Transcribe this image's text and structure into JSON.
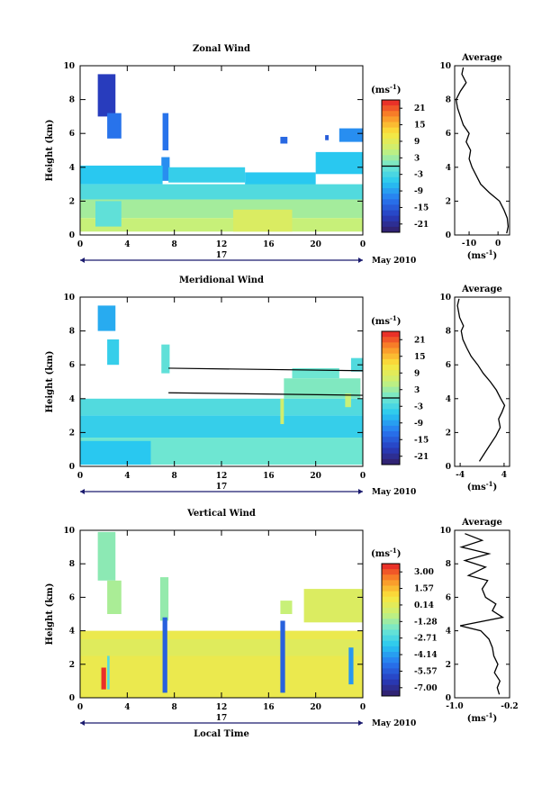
{
  "chart_data": [
    {
      "type": "heatmap",
      "title": "Zonal Wind",
      "ylabel": "Height (km)",
      "xlabel": "",
      "xlim": [
        0,
        24
      ],
      "ylim": [
        0,
        10
      ],
      "x_ticks": [
        "0",
        "4",
        "8",
        "12",
        "16",
        "20",
        "0"
      ],
      "y_ticks": [
        "0",
        "2",
        "4",
        "6",
        "8",
        "10"
      ],
      "date_day": "17",
      "date_label": "May 2010",
      "colorbar": {
        "unit_label": "(ms",
        "unit_exp": "-1",
        "ticks": [
          "21",
          "15",
          "9",
          "3",
          "-3",
          "-9",
          "-15",
          "-21"
        ],
        "zero_line": 0.5
      },
      "regions": [
        {
          "x0": 1.5,
          "x1": 3.0,
          "y0": 7.0,
          "y1": 9.5,
          "v": -16
        },
        {
          "x0": 2.3,
          "x1": 3.5,
          "y0": 5.7,
          "y1": 7.2,
          "v": -11
        },
        {
          "x0": 7.0,
          "x1": 7.5,
          "y0": 5.0,
          "y1": 7.2,
          "v": -11
        },
        {
          "x0": 6.9,
          "x1": 7.6,
          "y0": 3.2,
          "y1": 4.6,
          "v": -9
        },
        {
          "x0": 17.0,
          "x1": 17.6,
          "y0": 5.4,
          "y1": 5.8,
          "v": -12
        },
        {
          "x0": 20.8,
          "x1": 21.1,
          "y0": 5.6,
          "y1": 5.9,
          "v": -13
        },
        {
          "x0": 22.0,
          "x1": 24.0,
          "y0": 5.5,
          "y1": 6.3,
          "v": -9
        },
        {
          "x0": 20.0,
          "x1": 24.0,
          "y0": 3.6,
          "y1": 4.9,
          "v": -5
        },
        {
          "x0": 0.0,
          "x1": 7.0,
          "y0": 3.0,
          "y1": 4.1,
          "v": -5
        },
        {
          "x0": 7.5,
          "x1": 14.0,
          "y0": 3.1,
          "y1": 4.0,
          "v": -4
        },
        {
          "x0": 14.0,
          "x1": 20.0,
          "y0": 2.9,
          "y1": 3.7,
          "v": -5
        },
        {
          "x0": 0.0,
          "x1": 24.0,
          "y0": 2.1,
          "y1": 3.0,
          "v": -2
        },
        {
          "x0": 0.0,
          "x1": 24.0,
          "y0": 1.0,
          "y1": 2.1,
          "v": 3
        },
        {
          "x0": 0.0,
          "x1": 24.0,
          "y0": 0.2,
          "y1": 1.0,
          "v": 5
        },
        {
          "x0": 1.3,
          "x1": 3.5,
          "y0": 0.5,
          "y1": 2.0,
          "v": -1
        },
        {
          "x0": 13.0,
          "x1": 18.0,
          "y0": 0.2,
          "y1": 1.5,
          "v": 7
        }
      ],
      "profile": {
        "title": "Average",
        "xlabel_base": "(ms",
        "xlabel_exp": "-1",
        "xlim": [
          -15,
          4
        ],
        "ylim": [
          0,
          10
        ],
        "x_ticks": [
          {
            "v": -10,
            "t": "-10"
          },
          {
            "v": 0,
            "t": "0"
          }
        ],
        "y_ticks": [
          "0",
          "2",
          "4",
          "6",
          "8",
          "10"
        ],
        "points": [
          [
            3.0,
            0.1
          ],
          [
            3.5,
            0.5
          ],
          [
            3.2,
            1.0
          ],
          [
            2.0,
            1.5
          ],
          [
            0.5,
            2.0
          ],
          [
            -3.0,
            2.5
          ],
          [
            -6.0,
            3.0
          ],
          [
            -7.5,
            3.5
          ],
          [
            -9.0,
            4.0
          ],
          [
            -10.0,
            4.5
          ],
          [
            -9.5,
            5.0
          ],
          [
            -11.0,
            5.5
          ],
          [
            -10.0,
            6.0
          ],
          [
            -12.0,
            6.5
          ],
          [
            -13.0,
            7.0
          ],
          [
            -14.0,
            7.5
          ],
          [
            -14.5,
            8.0
          ],
          [
            -13.0,
            8.5
          ],
          [
            -11.0,
            9.0
          ],
          [
            -12.5,
            9.5
          ],
          [
            -12.0,
            9.9
          ]
        ]
      }
    },
    {
      "type": "heatmap",
      "title": "Meridional Wind",
      "ylabel": "Height (km)",
      "xlabel": "",
      "xlim": [
        0,
        24
      ],
      "ylim": [
        0,
        10
      ],
      "x_ticks": [
        "0",
        "4",
        "8",
        "12",
        "16",
        "20",
        "0"
      ],
      "y_ticks": [
        "0",
        "2",
        "4",
        "6",
        "8",
        "10"
      ],
      "date_day": "17",
      "date_label": "May 2010",
      "colorbar": {
        "unit_label": "(ms",
        "unit_exp": "-1",
        "ticks": [
          "21",
          "15",
          "9",
          "3",
          "-3",
          "-9",
          "-15",
          "-21"
        ],
        "zero_line": 0.5
      },
      "regions": [
        {
          "x0": 1.5,
          "x1": 3.0,
          "y0": 8.0,
          "y1": 9.5,
          "v": -7
        },
        {
          "x0": 2.3,
          "x1": 3.3,
          "y0": 6.0,
          "y1": 7.5,
          "v": -4
        },
        {
          "x0": 6.9,
          "x1": 7.6,
          "y0": 5.5,
          "y1": 7.2,
          "v": -1
        },
        {
          "x0": 23.0,
          "x1": 24.0,
          "y0": 5.6,
          "y1": 6.4,
          "v": -2
        },
        {
          "x0": 18.0,
          "x1": 22.0,
          "y0": 5.2,
          "y1": 5.8,
          "v": 0
        },
        {
          "x0": 17.3,
          "x1": 23.8,
          "y0": 4.0,
          "y1": 5.2,
          "v": 1
        },
        {
          "x0": 0.0,
          "x1": 24.0,
          "y0": 3.0,
          "y1": 4.0,
          "v": -2
        },
        {
          "x0": 0.0,
          "x1": 24.0,
          "y0": 1.7,
          "y1": 3.0,
          "v": -4
        },
        {
          "x0": 0.0,
          "x1": 24.0,
          "y0": 0.1,
          "y1": 1.7,
          "v": 0
        },
        {
          "x0": 0.0,
          "x1": 6.0,
          "y0": 0.1,
          "y1": 1.5,
          "v": -5
        },
        {
          "x0": 17.0,
          "x1": 17.3,
          "y0": 2.5,
          "y1": 4.0,
          "v": 6
        },
        {
          "x0": 22.5,
          "x1": 23.0,
          "y0": 3.5,
          "y1": 4.3,
          "v": 5
        }
      ],
      "lines": [
        {
          "x0": 7.5,
          "x1": 24.0,
          "y0": 5.8,
          "y1": 5.65
        },
        {
          "x0": 7.5,
          "x1": 24.0,
          "y0": 4.35,
          "y1": 4.2
        }
      ],
      "profile": {
        "title": "Average",
        "xlabel_base": "(ms",
        "xlabel_exp": "-1",
        "xlim": [
          -5,
          5
        ],
        "ylim": [
          0,
          10
        ],
        "x_ticks": [
          {
            "v": -4,
            "t": "-4"
          },
          {
            "v": 4,
            "t": "4"
          }
        ],
        "y_ticks": [
          "0",
          "2",
          "4",
          "6",
          "8",
          "10"
        ],
        "points": [
          [
            -0.5,
            0.3
          ],
          [
            0.5,
            0.8
          ],
          [
            1.5,
            1.3
          ],
          [
            2.5,
            1.8
          ],
          [
            3.3,
            2.3
          ],
          [
            3.0,
            2.8
          ],
          [
            3.6,
            3.2
          ],
          [
            4.1,
            3.6
          ],
          [
            3.4,
            4.0
          ],
          [
            2.6,
            4.5
          ],
          [
            1.5,
            5.0
          ],
          [
            0.2,
            5.5
          ],
          [
            -0.8,
            6.0
          ],
          [
            -2.0,
            6.5
          ],
          [
            -2.8,
            7.0
          ],
          [
            -3.5,
            7.5
          ],
          [
            -3.8,
            8.0
          ],
          [
            -3.4,
            8.3
          ],
          [
            -4.1,
            8.8
          ],
          [
            -4.5,
            9.5
          ],
          [
            -4.2,
            9.9
          ]
        ]
      }
    },
    {
      "type": "heatmap",
      "title": "Vertical Wind",
      "ylabel": "Height (km)",
      "xlabel": "Local Time",
      "xlim": [
        0,
        24
      ],
      "ylim": [
        0,
        10
      ],
      "x_ticks": [
        "0",
        "4",
        "8",
        "12",
        "16",
        "20",
        "0"
      ],
      "y_ticks": [
        "0",
        "2",
        "4",
        "6",
        "8",
        "10"
      ],
      "date_day": "17",
      "date_label": "May 2010",
      "colorbar": {
        "unit_label": "(ms",
        "unit_exp": "-1",
        "ticks": [
          "3.00",
          "1.57",
          "0.14",
          "-1.28",
          "-2.71",
          "-4.14",
          "-5.57",
          "-7.00"
        ],
        "zero_line": null
      },
      "regions": [
        {
          "x0": 1.5,
          "x1": 3.0,
          "y0": 7.0,
          "y1": 9.9,
          "v": -1.6
        },
        {
          "x0": 2.3,
          "x1": 3.5,
          "y0": 5.0,
          "y1": 7.0,
          "v": -1.2
        },
        {
          "x0": 6.8,
          "x1": 7.5,
          "y0": 4.6,
          "y1": 7.2,
          "v": -1.5
        },
        {
          "x0": 17.0,
          "x1": 18.0,
          "y0": 5.0,
          "y1": 5.8,
          "v": -0.8
        },
        {
          "x0": 19.0,
          "x1": 24.0,
          "y0": 4.5,
          "y1": 6.5,
          "v": -0.3
        },
        {
          "x0": 0.0,
          "x1": 24.0,
          "y0": 0.0,
          "y1": 4.0,
          "v": 0.1
        },
        {
          "x0": 0.0,
          "x1": 24.0,
          "y0": 2.5,
          "y1": 3.5,
          "v": -0.2
        },
        {
          "x0": 1.8,
          "x1": 2.2,
          "y0": 0.5,
          "y1": 1.8,
          "v": 2.8
        },
        {
          "x0": 2.3,
          "x1": 2.5,
          "y0": 0.5,
          "y1": 2.5,
          "v": -2.5
        },
        {
          "x0": 7.0,
          "x1": 7.4,
          "y0": 0.3,
          "y1": 4.8,
          "v": -5.0
        },
        {
          "x0": 17.0,
          "x1": 17.4,
          "y0": 0.3,
          "y1": 4.6,
          "v": -5.0
        },
        {
          "x0": 22.8,
          "x1": 23.2,
          "y0": 0.8,
          "y1": 3.0,
          "v": -4.0
        }
      ],
      "profile": {
        "title": "Average",
        "xlabel_base": "(ms",
        "xlabel_exp": "-1",
        "xlim": [
          -1.0,
          -0.2
        ],
        "ylim": [
          0,
          10
        ],
        "x_ticks": [
          {
            "v": -1.0,
            "t": "-1.0"
          },
          {
            "v": -0.2,
            "t": "-0.2"
          }
        ],
        "y_ticks": [
          "0",
          "2",
          "4",
          "6",
          "8",
          "10"
        ],
        "points": [
          [
            -0.35,
            0.2
          ],
          [
            -0.38,
            0.6
          ],
          [
            -0.34,
            1.0
          ],
          [
            -0.42,
            1.5
          ],
          [
            -0.37,
            2.0
          ],
          [
            -0.43,
            2.5
          ],
          [
            -0.45,
            3.0
          ],
          [
            -0.5,
            3.5
          ],
          [
            -0.62,
            4.0
          ],
          [
            -0.92,
            4.3
          ],
          [
            -0.3,
            4.8
          ],
          [
            -0.45,
            5.2
          ],
          [
            -0.4,
            5.6
          ],
          [
            -0.55,
            6.0
          ],
          [
            -0.6,
            6.5
          ],
          [
            -0.52,
            7.0
          ],
          [
            -0.8,
            7.3
          ],
          [
            -0.55,
            7.8
          ],
          [
            -0.85,
            8.2
          ],
          [
            -0.5,
            8.6
          ],
          [
            -0.9,
            9.0
          ],
          [
            -0.6,
            9.4
          ],
          [
            -0.85,
            9.8
          ]
        ]
      }
    }
  ]
}
